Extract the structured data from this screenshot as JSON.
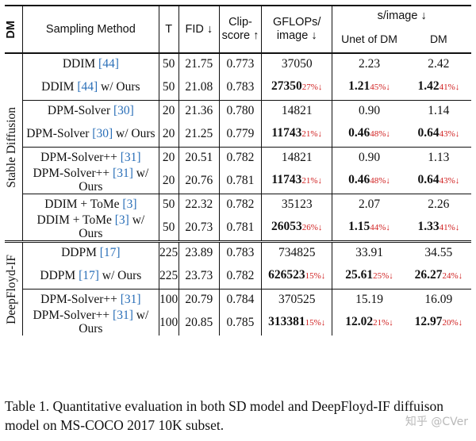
{
  "headers": {
    "dm": "DM",
    "method": "Sampling Method",
    "t": "T",
    "fid": "FID ↓",
    "clip": "Clip-score ↑",
    "gflops": "GFLOPs/ image ↓",
    "simage": "s/image ↓",
    "unet": "Unet of DM",
    "dm2": "DM"
  },
  "groups": [
    {
      "name": "Stable Diffusion",
      "blocks": [
        {
          "base": {
            "method": "DDIM",
            "cite": "[44]",
            "t": "50",
            "fid": "21.75",
            "clip": "0.773",
            "gflops": "37050",
            "unet": "2.23",
            "dm": "2.42"
          },
          "ours": {
            "method": "DDIM",
            "cite": "[44]",
            "suffix": "w/ Ours",
            "t": "50",
            "fid": "21.08",
            "clip": "0.783",
            "gflops": "27350",
            "gflops_pct": "27%↓",
            "unet": "1.21",
            "unet_pct": "45%↓",
            "dm": "1.42",
            "dm_pct": "41%↓"
          }
        },
        {
          "base": {
            "method": "DPM-Solver",
            "cite": "[30]",
            "t": "20",
            "fid": "21.36",
            "clip": "0.780",
            "gflops": "14821",
            "unet": "0.90",
            "dm": "1.14"
          },
          "ours": {
            "method": "DPM-Solver",
            "cite": "[30]",
            "suffix": "w/ Ours",
            "t": "20",
            "fid": "21.25",
            "clip": "0.779",
            "gflops": "11743",
            "gflops_pct": "21%↓",
            "unet": "0.46",
            "unet_pct": "48%↓",
            "dm": "0.64",
            "dm_pct": "43%↓"
          }
        },
        {
          "base": {
            "method": "DPM-Solver++",
            "cite": "[31]",
            "t": "20",
            "fid": "20.51",
            "clip": "0.782",
            "gflops": "14821",
            "unet": "0.90",
            "dm": "1.13"
          },
          "ours": {
            "method": "DPM-Solver++",
            "cite": "[31]",
            "suffix": "w/ Ours",
            "t": "20",
            "fid": "20.76",
            "clip": "0.781",
            "gflops": "11743",
            "gflops_pct": "21%↓",
            "unet": "0.46",
            "unet_pct": "48%↓",
            "dm": "0.64",
            "dm_pct": "43%↓"
          }
        },
        {
          "base": {
            "method": "DDIM + ToMe",
            "cite": "[3]",
            "t": "50",
            "fid": "22.32",
            "clip": "0.782",
            "gflops": "35123",
            "unet": "2.07",
            "dm": "2.26"
          },
          "ours": {
            "method": "DDIM + ToMe",
            "cite": "[3]",
            "suffix": "w/ Ours",
            "t": "50",
            "fid": "20.73",
            "clip": "0.781",
            "gflops": "26053",
            "gflops_pct": "26%↓",
            "unet": "1.15",
            "unet_pct": "44%↓",
            "dm": "1.33",
            "dm_pct": "41%↓"
          }
        }
      ]
    },
    {
      "name": "DeepFloyd-IF",
      "blocks": [
        {
          "base": {
            "method": "DDPM",
            "cite": "[17]",
            "t": "225",
            "fid": "23.89",
            "clip": "0.783",
            "gflops": "734825",
            "unet": "33.91",
            "dm": "34.55"
          },
          "ours": {
            "method": "DDPM",
            "cite": "[17]",
            "suffix": "w/ Ours",
            "t": "225",
            "fid": "23.73",
            "clip": "0.782",
            "gflops": "626523",
            "gflops_pct": "15%↓",
            "unet": "25.61",
            "unet_pct": "25%↓",
            "dm": "26.27",
            "dm_pct": "24%↓"
          }
        },
        {
          "base": {
            "method": "DPM-Solver++",
            "cite": "[31]",
            "t": "100",
            "fid": "20.79",
            "clip": "0.784",
            "gflops": "370525",
            "unet": "15.19",
            "dm": "16.09"
          },
          "ours": {
            "method": "DPM-Solver++",
            "cite": "[31]",
            "suffix": "w/ Ours",
            "t": "100",
            "fid": "20.85",
            "clip": "0.785",
            "gflops": "313381",
            "gflops_pct": "15%↓",
            "unet": "12.02",
            "unet_pct": "21%↓",
            "dm": "12.97",
            "dm_pct": "20%↓"
          }
        }
      ]
    }
  ],
  "caption": "Table 1. Quantitative evaluation in both SD model and DeepFloyd-IF diffuison model on MS-COCO 2017 10K subset.",
  "watermark": "知乎 @CVer"
}
